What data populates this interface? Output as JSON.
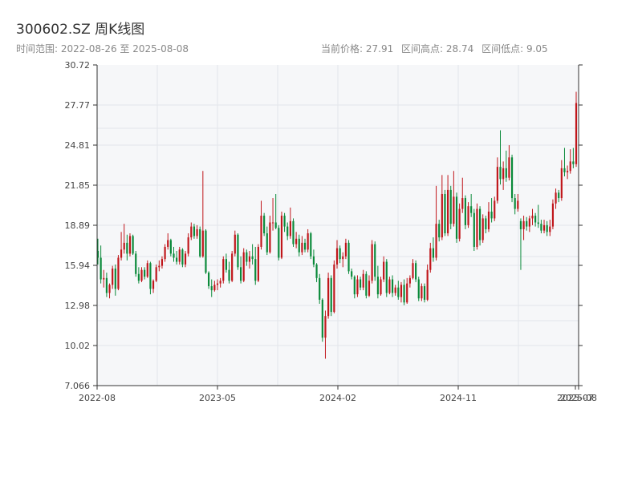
{
  "title": "300602.SZ 周K线图",
  "subtitle": "时间范围: 2022-08-26 至 2025-08-08",
  "stats": {
    "price": "当前价格: 27.91",
    "high": "区间高点: 28.74",
    "low": "区间低点: 9.05"
  },
  "colors": {
    "up": "#c0161b",
    "down": "#0a8a3a",
    "axis": "#333333",
    "grid": "#e3e6ea",
    "plot_bg": "#f6f7f9"
  },
  "chart_data": {
    "type": "candlestick",
    "title": "300602.SZ 周K线图",
    "period": "weekly",
    "y_ticks": [
      "7.066",
      "10.02",
      "12.98",
      "15.94",
      "18.89",
      "21.85",
      "24.81",
      "27.77",
      "30.72"
    ],
    "ylim": [
      7.066,
      30.72
    ],
    "x_ticks": [
      "2022-08",
      "2023-05",
      "2024-02",
      "2024-11",
      "2025-07",
      "2025-08"
    ],
    "grid": true,
    "ohlc": [
      [
        17.0,
        17.9,
        16.0,
        16.5
      ],
      [
        16.5,
        17.4,
        14.6,
        14.9
      ],
      [
        14.9,
        15.6,
        14.3,
        15.0
      ],
      [
        15.0,
        15.4,
        13.6,
        13.9
      ],
      [
        13.9,
        14.6,
        13.5,
        14.5
      ],
      [
        14.5,
        15.9,
        14.2,
        15.7
      ],
      [
        15.7,
        16.0,
        13.7,
        14.2
      ],
      [
        14.2,
        16.7,
        14.1,
        16.5
      ],
      [
        16.5,
        18.4,
        16.3,
        17.1
      ],
      [
        17.1,
        19.0,
        16.8,
        17.6
      ],
      [
        17.6,
        18.2,
        16.3,
        16.8
      ],
      [
        16.8,
        18.3,
        16.6,
        18.1
      ],
      [
        18.1,
        18.2,
        16.7,
        16.8
      ],
      [
        16.8,
        17.0,
        15.1,
        15.3
      ],
      [
        15.3,
        15.8,
        14.6,
        14.8
      ],
      [
        14.8,
        15.8,
        14.7,
        15.6
      ],
      [
        15.6,
        15.8,
        14.9,
        15.1
      ],
      [
        15.1,
        16.3,
        15.0,
        16.1
      ],
      [
        16.1,
        16.2,
        13.8,
        14.2
      ],
      [
        14.2,
        14.9,
        13.9,
        14.8
      ],
      [
        14.8,
        16.0,
        14.7,
        15.8
      ],
      [
        15.8,
        16.3,
        15.5,
        15.9
      ],
      [
        15.9,
        16.6,
        15.7,
        16.4
      ],
      [
        16.4,
        17.5,
        16.2,
        17.3
      ],
      [
        17.3,
        18.3,
        17.1,
        17.8
      ],
      [
        17.8,
        17.9,
        16.6,
        16.8
      ],
      [
        16.8,
        17.3,
        16.2,
        16.5
      ],
      [
        16.5,
        17.0,
        16.0,
        16.2
      ],
      [
        16.2,
        17.3,
        16.0,
        17.1
      ],
      [
        17.1,
        17.2,
        15.8,
        16.0
      ],
      [
        16.0,
        17.0,
        15.8,
        16.8
      ],
      [
        16.8,
        18.3,
        16.6,
        18.0
      ],
      [
        18.0,
        19.1,
        17.8,
        18.8
      ],
      [
        18.8,
        19.0,
        17.9,
        18.1
      ],
      [
        18.1,
        18.9,
        17.9,
        18.6
      ],
      [
        18.6,
        18.8,
        16.5,
        16.6
      ],
      [
        16.6,
        22.9,
        16.5,
        18.5
      ],
      [
        18.5,
        18.6,
        15.3,
        15.4
      ],
      [
        15.4,
        15.5,
        14.2,
        14.4
      ],
      [
        14.4,
        14.9,
        13.6,
        14.1
      ],
      [
        14.1,
        14.8,
        14.0,
        14.5
      ],
      [
        14.5,
        14.9,
        14.1,
        14.6
      ],
      [
        14.6,
        15.0,
        14.3,
        14.8
      ],
      [
        14.8,
        16.6,
        14.6,
        16.4
      ],
      [
        16.4,
        16.8,
        15.4,
        15.6
      ],
      [
        15.6,
        16.2,
        14.6,
        14.8
      ],
      [
        14.8,
        17.0,
        14.7,
        16.8
      ],
      [
        16.8,
        18.5,
        16.6,
        18.2
      ],
      [
        18.2,
        18.3,
        15.6,
        15.8
      ],
      [
        15.8,
        16.6,
        14.6,
        14.8
      ],
      [
        14.8,
        17.2,
        14.7,
        16.9
      ],
      [
        16.9,
        17.1,
        15.9,
        16.2
      ],
      [
        16.2,
        17.0,
        15.7,
        16.6
      ],
      [
        16.6,
        17.5,
        16.0,
        16.4
      ],
      [
        16.4,
        17.3,
        14.5,
        14.8
      ],
      [
        14.8,
        17.5,
        14.7,
        17.3
      ],
      [
        17.3,
        20.7,
        17.1,
        19.6
      ],
      [
        19.6,
        19.8,
        18.1,
        18.3
      ],
      [
        18.3,
        18.8,
        16.7,
        16.9
      ],
      [
        16.9,
        19.6,
        16.8,
        19.1
      ],
      [
        19.1,
        20.9,
        18.5,
        19.1
      ],
      [
        19.1,
        21.2,
        18.6,
        18.7
      ],
      [
        18.7,
        18.9,
        16.3,
        16.5
      ],
      [
        16.5,
        19.9,
        16.4,
        19.6
      ],
      [
        19.6,
        19.8,
        18.4,
        18.8
      ],
      [
        18.8,
        19.1,
        17.8,
        18.1
      ],
      [
        18.1,
        20.2,
        17.9,
        19.2
      ],
      [
        19.2,
        19.4,
        17.3,
        17.5
      ],
      [
        17.5,
        18.4,
        17.2,
        17.9
      ],
      [
        17.9,
        18.2,
        16.6,
        16.9
      ],
      [
        16.9,
        18.1,
        16.7,
        17.6
      ],
      [
        17.6,
        17.9,
        16.9,
        17.1
      ],
      [
        17.1,
        18.6,
        16.9,
        18.3
      ],
      [
        18.3,
        18.4,
        16.4,
        16.6
      ],
      [
        16.6,
        17.1,
        15.8,
        16.0
      ],
      [
        16.0,
        16.1,
        14.7,
        15.0
      ],
      [
        15.0,
        15.3,
        13.1,
        13.4
      ],
      [
        13.4,
        13.5,
        10.3,
        10.6
      ],
      [
        10.6,
        12.6,
        9.05,
        12.2
      ],
      [
        12.2,
        15.4,
        12.0,
        15.0
      ],
      [
        15.0,
        15.2,
        12.2,
        12.5
      ],
      [
        12.5,
        16.3,
        12.4,
        16.0
      ],
      [
        16.0,
        17.8,
        15.7,
        17.2
      ],
      [
        17.2,
        17.4,
        16.1,
        16.4
      ],
      [
        16.4,
        16.9,
        15.8,
        16.6
      ],
      [
        16.6,
        17.9,
        16.4,
        17.6
      ],
      [
        17.6,
        17.8,
        15.3,
        15.5
      ],
      [
        15.5,
        15.7,
        14.9,
        15.1
      ],
      [
        15.1,
        15.2,
        13.5,
        13.8
      ],
      [
        13.8,
        15.2,
        13.6,
        14.9
      ],
      [
        14.9,
        15.1,
        14.1,
        14.3
      ],
      [
        14.3,
        15.6,
        14.1,
        15.3
      ],
      [
        15.3,
        15.5,
        13.5,
        13.7
      ],
      [
        13.7,
        15.2,
        13.6,
        14.8
      ],
      [
        14.8,
        17.8,
        14.6,
        17.5
      ],
      [
        17.5,
        17.7,
        14.8,
        15.1
      ],
      [
        15.1,
        15.9,
        13.5,
        13.8
      ],
      [
        13.8,
        15.1,
        13.7,
        14.9
      ],
      [
        14.9,
        16.6,
        14.7,
        16.2
      ],
      [
        16.2,
        16.4,
        13.6,
        13.9
      ],
      [
        13.9,
        15.1,
        13.8,
        14.9
      ],
      [
        14.9,
        15.2,
        13.6,
        13.9
      ],
      [
        13.9,
        14.5,
        13.7,
        14.3
      ],
      [
        14.3,
        14.8,
        13.4,
        13.6
      ],
      [
        13.6,
        14.7,
        13.2,
        14.5
      ],
      [
        14.5,
        14.9,
        13.0,
        13.2
      ],
      [
        13.2,
        15.0,
        13.1,
        14.6
      ],
      [
        14.6,
        15.2,
        14.3,
        15.0
      ],
      [
        15.0,
        16.4,
        14.9,
        16.1
      ],
      [
        16.1,
        16.3,
        14.7,
        14.9
      ],
      [
        14.9,
        15.1,
        13.3,
        13.5
      ],
      [
        13.5,
        14.6,
        13.3,
        14.4
      ],
      [
        14.4,
        14.6,
        13.2,
        13.4
      ],
      [
        13.4,
        16.0,
        13.3,
        15.6
      ],
      [
        15.6,
        17.6,
        15.4,
        17.2
      ],
      [
        17.2,
        18.0,
        16.2,
        16.5
      ],
      [
        16.5,
        21.8,
        16.3,
        19.0
      ],
      [
        19.0,
        19.3,
        17.7,
        18.0
      ],
      [
        18.0,
        22.6,
        17.8,
        21.2
      ],
      [
        21.2,
        21.5,
        18.1,
        18.3
      ],
      [
        18.3,
        22.6,
        18.1,
        21.5
      ],
      [
        21.5,
        21.8,
        18.6,
        19.0
      ],
      [
        19.0,
        22.9,
        18.8,
        21.0
      ],
      [
        21.0,
        21.3,
        17.6,
        17.9
      ],
      [
        17.9,
        20.5,
        17.7,
        20.1
      ],
      [
        20.1,
        22.4,
        19.8,
        20.9
      ],
      [
        20.9,
        21.1,
        18.6,
        18.9
      ],
      [
        18.9,
        20.6,
        18.7,
        20.3
      ],
      [
        20.3,
        21.2,
        19.5,
        19.8
      ],
      [
        19.8,
        20.1,
        17.0,
        17.3
      ],
      [
        17.3,
        20.5,
        17.1,
        20.1
      ],
      [
        20.1,
        20.3,
        17.4,
        17.8
      ],
      [
        17.8,
        19.7,
        17.6,
        19.4
      ],
      [
        19.4,
        19.6,
        18.3,
        18.6
      ],
      [
        18.6,
        20.6,
        18.4,
        19.9
      ],
      [
        19.9,
        20.9,
        19.1,
        19.4
      ],
      [
        19.4,
        21.0,
        19.2,
        20.7
      ],
      [
        20.7,
        23.9,
        20.5,
        23.2
      ],
      [
        23.2,
        25.9,
        21.9,
        22.3
      ],
      [
        22.3,
        23.6,
        21.5,
        23.1
      ],
      [
        23.1,
        24.4,
        22.1,
        22.4
      ],
      [
        22.4,
        24.8,
        22.2,
        23.9
      ],
      [
        23.9,
        24.1,
        20.6,
        20.9
      ],
      [
        20.9,
        21.2,
        19.7,
        20.1
      ],
      [
        20.1,
        21.2,
        19.9,
        20.7
      ],
      [
        19.2,
        19.4,
        15.6,
        18.6
      ],
      [
        18.6,
        19.6,
        17.8,
        19.2
      ],
      [
        19.2,
        19.5,
        18.5,
        18.8
      ],
      [
        18.8,
        19.6,
        18.4,
        19.4
      ],
      [
        19.4,
        20.1,
        18.9,
        19.6
      ],
      [
        19.6,
        19.8,
        18.8,
        19.1
      ],
      [
        19.1,
        20.4,
        18.7,
        19.0
      ],
      [
        19.0,
        19.3,
        18.3,
        18.5
      ],
      [
        18.5,
        19.3,
        18.3,
        18.9
      ],
      [
        18.9,
        19.2,
        18.1,
        18.4
      ],
      [
        18.4,
        19.3,
        18.1,
        18.8
      ],
      [
        18.8,
        20.8,
        18.6,
        20.5
      ],
      [
        20.5,
        21.6,
        20.1,
        21.3
      ],
      [
        21.3,
        21.5,
        20.6,
        20.9
      ],
      [
        20.9,
        23.7,
        20.7,
        23.1
      ],
      [
        23.1,
        24.6,
        22.5,
        22.8
      ],
      [
        22.8,
        23.3,
        22.3,
        22.9
      ],
      [
        22.9,
        24.5,
        22.7,
        23.6
      ],
      [
        23.6,
        24.6,
        23.1,
        23.4
      ],
      [
        23.4,
        28.74,
        23.2,
        27.91
      ]
    ]
  }
}
